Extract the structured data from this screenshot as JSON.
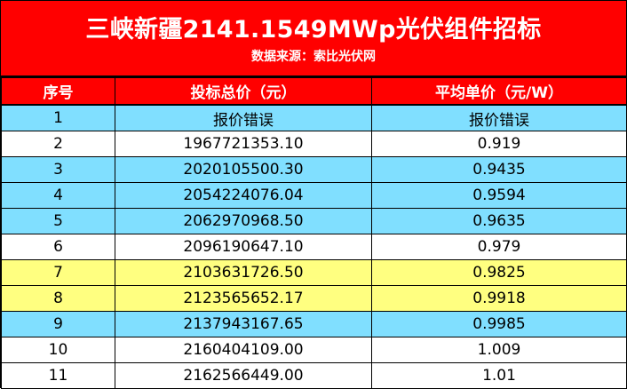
{
  "title": "三峡新疆2141.1549MWp光伏组件招标",
  "subtitle": "数据来源：索比光伏网",
  "colors": {
    "header_bg": "#ff0000",
    "blue_row": "#80dfff",
    "yellow_row": "#ffff80",
    "white_row": "#ffffff"
  },
  "table": {
    "headers": [
      "序号",
      "投标总价（元）",
      "平均单价（元/W）"
    ],
    "rows": [
      {
        "no": "1",
        "total": "报价错误",
        "unit": "报价错误",
        "highlight": "blue"
      },
      {
        "no": "2",
        "total": "1967721353.10",
        "unit": "0.919",
        "highlight": "white"
      },
      {
        "no": "3",
        "total": "2020105500.30",
        "unit": "0.9435",
        "highlight": "blue"
      },
      {
        "no": "4",
        "total": "2054224076.04",
        "unit": "0.9594",
        "highlight": "blue"
      },
      {
        "no": "5",
        "total": "2062970968.50",
        "unit": "0.9635",
        "highlight": "blue"
      },
      {
        "no": "6",
        "total": "2096190647.10",
        "unit": "0.979",
        "highlight": "white"
      },
      {
        "no": "7",
        "total": "2103631726.50",
        "unit": "0.9825",
        "highlight": "yellow"
      },
      {
        "no": "8",
        "total": "2123565652.17",
        "unit": "0.9918",
        "highlight": "yellow"
      },
      {
        "no": "9",
        "total": "2137943167.65",
        "unit": "0.9985",
        "highlight": "blue"
      },
      {
        "no": "10",
        "total": "2160404109.00",
        "unit": "1.009",
        "highlight": "white"
      },
      {
        "no": "11",
        "total": "2162566449.00",
        "unit": "1.01",
        "highlight": "white"
      }
    ]
  }
}
